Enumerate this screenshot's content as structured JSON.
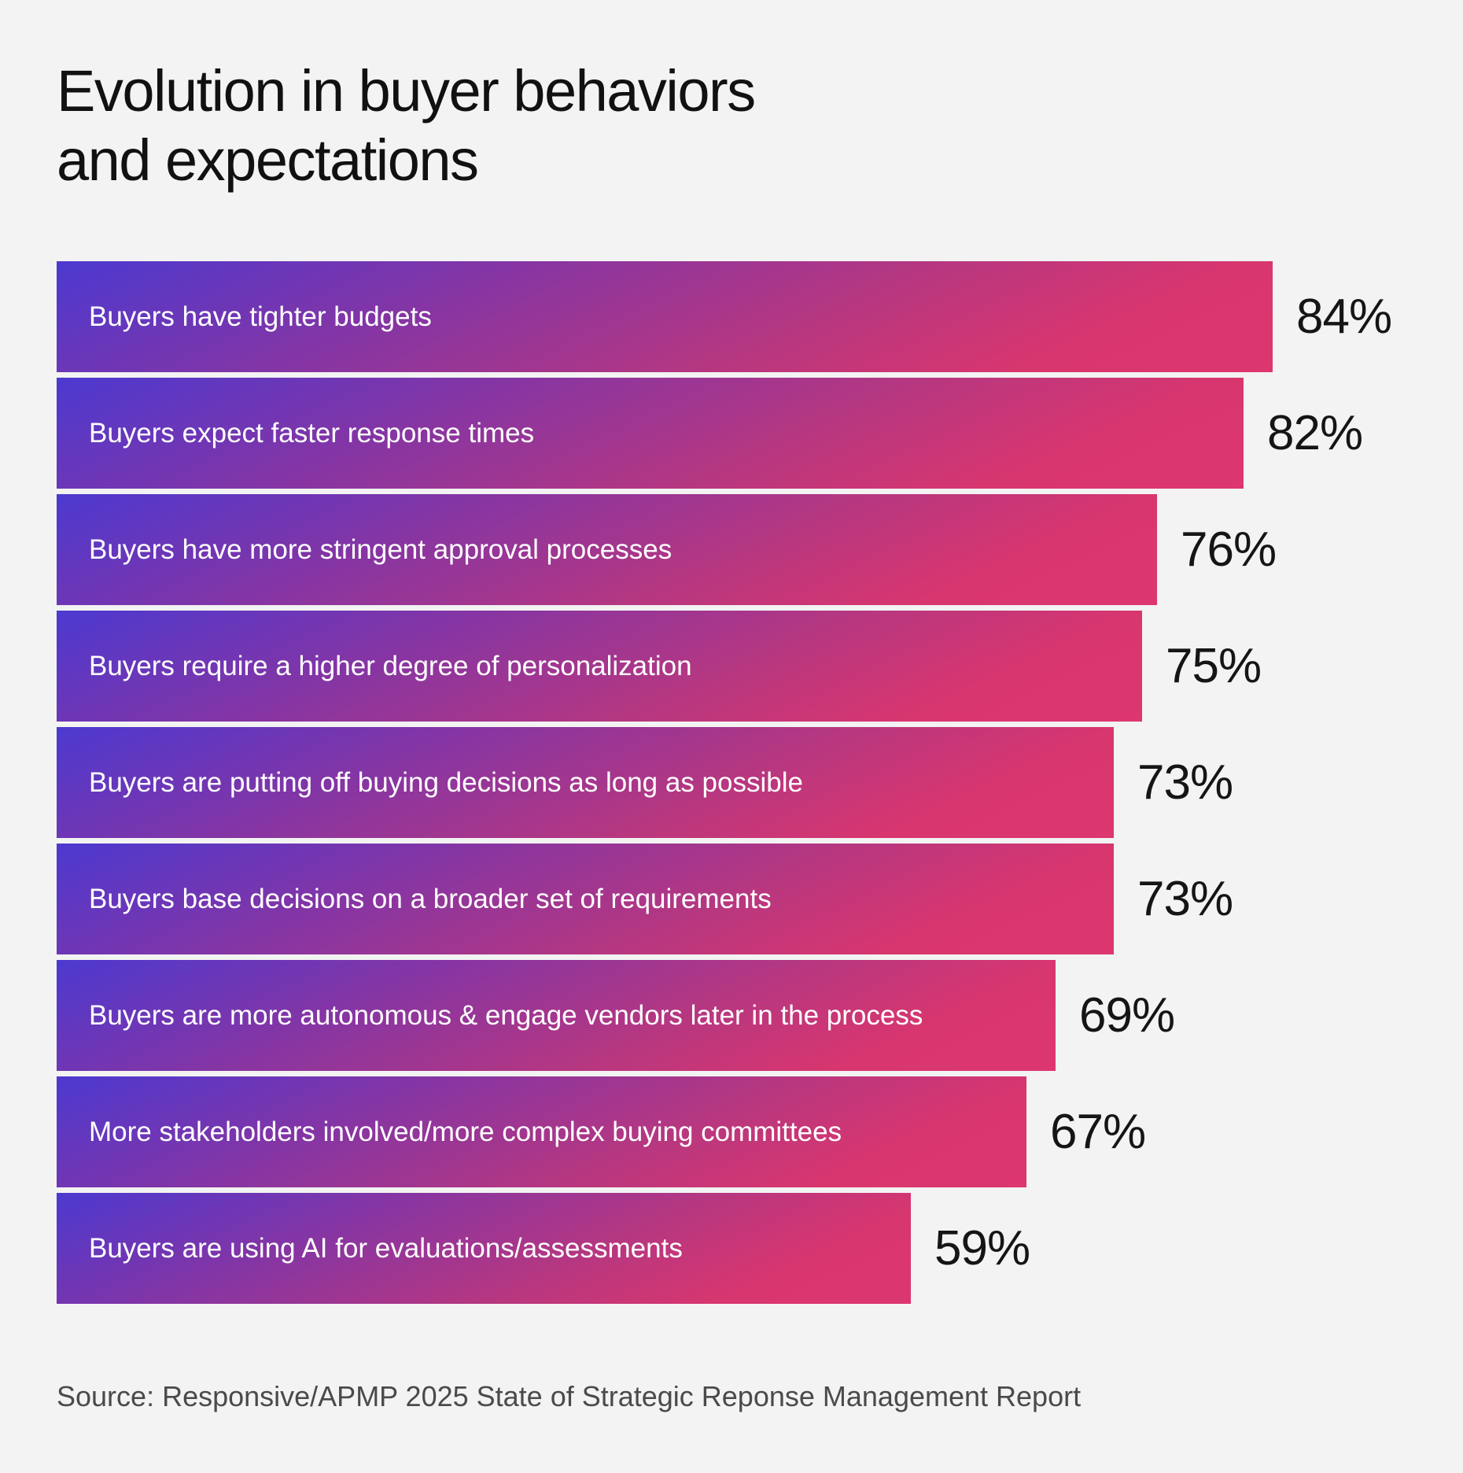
{
  "title_lines": [
    "Evolution in buyer behaviors",
    "and expectations"
  ],
  "source": "Source: Responsive/APMP 2025 State of Strategic Reponse Management Report",
  "colors": {
    "background": "#f2f3f2",
    "bar_gradient_start": "#4c39d0",
    "bar_gradient_end": "#dd3670",
    "label_text": "#ffffff",
    "value_text": "#151515"
  },
  "chart_data": {
    "type": "bar",
    "orientation": "horizontal",
    "title": "Evolution in buyer behaviors and expectations",
    "categories": [
      "Buyers have tighter budgets",
      "Buyers expect faster response times",
      "Buyers have more stringent approval processes",
      "Buyers require a higher degree of personalization",
      "Buyers are putting off buying decisions as long as possible",
      "Buyers base decisions on a broader set of requirements",
      "Buyers are more autonomous & engage vendors later in the process",
      "More stakeholders involved/more complex buying committees",
      "Buyers are using AI for evaluations/assessments"
    ],
    "values": [
      84,
      82,
      76,
      75,
      73,
      73,
      69,
      67,
      59
    ],
    "value_labels": [
      "84%",
      "82%",
      "76%",
      "75%",
      "73%",
      "73%",
      "69%",
      "67%",
      "59%"
    ],
    "unit": "%",
    "xlim": [
      0,
      100
    ],
    "grid": false,
    "legend": "none"
  }
}
